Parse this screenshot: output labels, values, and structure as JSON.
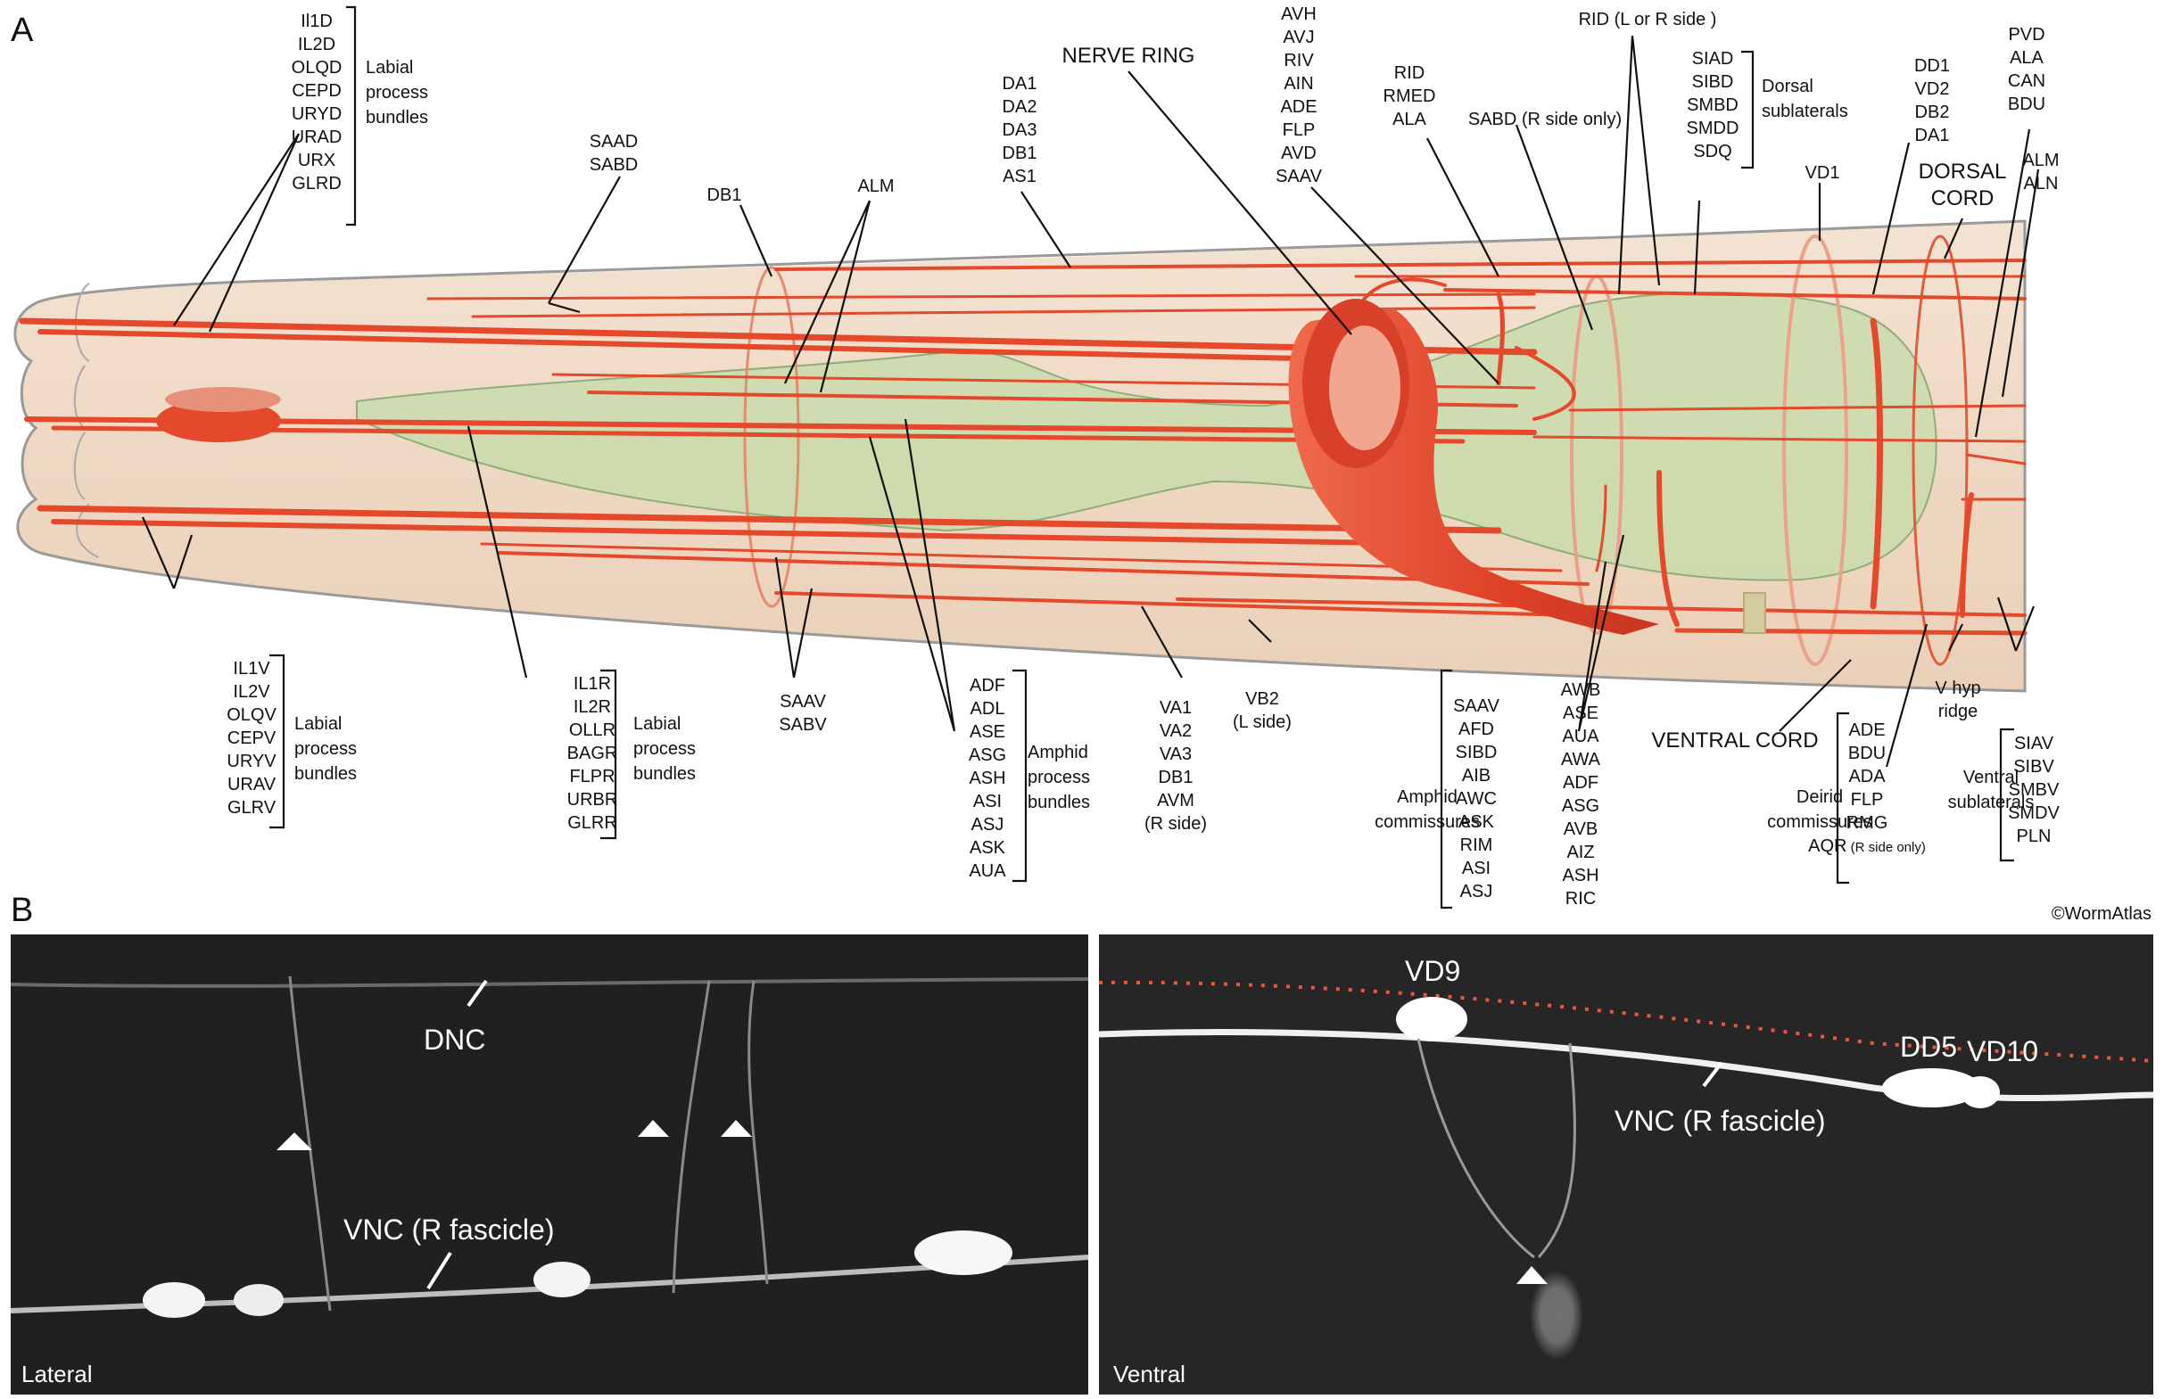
{
  "panel_a": {
    "letter": "A",
    "groups": {
      "labial_dorsal": {
        "items": [
          "Il1D",
          "IL2D",
          "OLQD",
          "CEPD",
          "URYD",
          "URAD",
          "URX",
          "GLRD"
        ],
        "caption": [
          "Labial",
          "process",
          "bundles"
        ]
      },
      "labial_lateral": {
        "items": [
          "IL1V",
          "IL2V",
          "OLQV",
          "CEPV",
          "URYV",
          "URAV",
          "GLRV"
        ],
        "caption": [
          "Labial",
          "process",
          "bundles"
        ]
      },
      "labial_right": {
        "items": [
          "IL1R",
          "IL2R",
          "OLLR",
          "BAGR",
          "FLPR",
          "URBR",
          "GLRR"
        ],
        "caption": [
          "Labial",
          "process",
          "bundles"
        ]
      },
      "saad_sabd": {
        "items": [
          "SAAD",
          "SABD"
        ]
      },
      "db1": {
        "items": [
          "DB1"
        ]
      },
      "alm_top": {
        "items": [
          "ALM"
        ]
      },
      "da_group": {
        "items": [
          "DA1",
          "DA2",
          "DA3",
          "DB1",
          "AS1"
        ]
      },
      "nerve_ring": {
        "items": [
          "NERVE RING"
        ]
      },
      "avh_group": {
        "items": [
          "AVH",
          "AVJ",
          "RIV",
          "AIN",
          "ADE",
          "FLP",
          "AVD",
          "SAAV"
        ]
      },
      "rid_group": {
        "items": [
          "RID",
          "RMED",
          "ALA"
        ]
      },
      "sabd_r": {
        "items": [
          "SABD (R side only)"
        ]
      },
      "rid_lr": {
        "items": [
          "RID (L or R side )"
        ]
      },
      "dorsal_sublaterals": {
        "items": [
          "SIAD",
          "SIBD",
          "SMBD",
          "SMDD",
          "SDQ"
        ],
        "caption": [
          "Dorsal",
          "sublaterals"
        ]
      },
      "vd1": {
        "items": [
          "VD1"
        ]
      },
      "dd1_group": {
        "items": [
          "DD1",
          "VD2",
          "DB2",
          "DA1"
        ]
      },
      "dorsal_cord": {
        "items": [
          "DORSAL",
          "CORD"
        ]
      },
      "pvd_group": {
        "items": [
          "PVD",
          "ALA",
          "CAN",
          "BDU"
        ]
      },
      "alm_aln": {
        "items": [
          "ALM",
          "ALN"
        ]
      },
      "saav_sabv": {
        "items": [
          "SAAV",
          "SABV"
        ]
      },
      "amphid_process": {
        "items": [
          "ADF",
          "ADL",
          "ASE",
          "ASG",
          "ASH",
          "ASI",
          "ASJ",
          "ASK",
          "AUA"
        ],
        "caption": [
          "Amphid",
          "process",
          "bundles"
        ]
      },
      "va_group": {
        "items": [
          "VA1",
          "VA2",
          "VA3",
          "DB1",
          "AVM",
          "(R side)"
        ]
      },
      "vb2": {
        "items": [
          "VB2",
          "(L side)"
        ]
      },
      "amphid_commissures_left": {
        "items": [
          "SAAV",
          "AFD",
          "SIBD",
          "AIB",
          "AWC",
          "ASK",
          "RIM",
          "ASI",
          "ASJ"
        ],
        "caption": [
          "Amphid",
          "commissures"
        ]
      },
      "amphid_commissures_right": {
        "items": [
          "AWB",
          "ASE",
          "AUA",
          "AWA",
          "ADF",
          "ASG",
          "AVB",
          "AIZ",
          "ASH",
          "RIC"
        ]
      },
      "ventral_cord": {
        "items": [
          "VENTRAL CORD"
        ]
      },
      "deirid": {
        "items": [
          "ADE",
          "BDU",
          "ADA",
          "FLP",
          "RMG",
          "AQR"
        ],
        "note": "(R side only)",
        "caption": [
          "Deirid",
          "commissures"
        ]
      },
      "v_hyp": {
        "items": [
          "V hyp",
          "ridge"
        ]
      },
      "ventral_sublaterals": {
        "items": [
          "SIAV",
          "SIBV",
          "SMBV",
          "SMDV",
          "PLN"
        ],
        "caption": [
          "Ventral",
          "sublaterals"
        ]
      }
    }
  },
  "panel_b": {
    "letter": "B",
    "copyright": "©WormAtlas",
    "left": {
      "corner": "Lateral",
      "labels": [
        "DNC",
        "VNC (R fascicle)"
      ]
    },
    "right": {
      "corner": "Ventral",
      "labels": [
        "VD9",
        "DD5",
        "VD10",
        "VNC (R fascicle)"
      ]
    }
  },
  "colors": {
    "body": "#f0dcc9",
    "pharynx": "#c8d9aa",
    "neuron": "#e5492c",
    "ring": "#e14a2f",
    "micro_bg": "#222222"
  }
}
